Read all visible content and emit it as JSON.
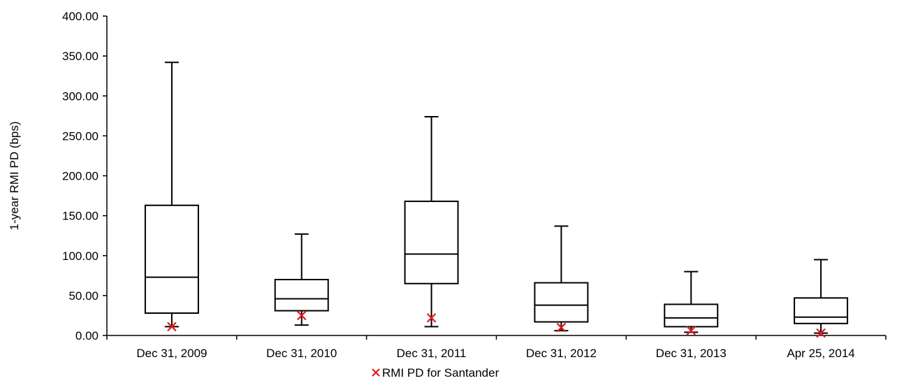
{
  "chart_data": {
    "type": "box",
    "ylabel": "1-year RMI PD (bps)",
    "ylim": [
      0,
      400
    ],
    "yticks": [
      "0.00",
      "50.00",
      "100.00",
      "150.00",
      "200.00",
      "250.00",
      "300.00",
      "350.00",
      "400.00"
    ],
    "grid": false,
    "legend": {
      "placement": "bottom-center",
      "label": "RMI PD for Santander"
    },
    "colors": {
      "box": "#000000",
      "marker": "#e41a1c"
    },
    "categories": [
      "Dec 31, 2009",
      "Dec 31, 2010",
      "Dec 31, 2011",
      "Dec 31, 2012",
      "Dec 31, 2013",
      "Apr 25, 2014"
    ],
    "boxes": [
      {
        "min": 11,
        "q1": 28,
        "median": 73,
        "q3": 163,
        "max": 342
      },
      {
        "min": 13,
        "q1": 31,
        "median": 46,
        "q3": 70,
        "max": 127
      },
      {
        "min": 11,
        "q1": 65,
        "median": 102,
        "q3": 168,
        "max": 274
      },
      {
        "min": 6,
        "q1": 17,
        "median": 38,
        "q3": 66,
        "max": 137
      },
      {
        "min": 4,
        "q1": 11,
        "median": 22,
        "q3": 39,
        "max": 80
      },
      {
        "min": 3,
        "q1": 15,
        "median": 23,
        "q3": 47,
        "max": 95
      }
    ],
    "santander": [
      11,
      25,
      22,
      10,
      6,
      3
    ]
  }
}
